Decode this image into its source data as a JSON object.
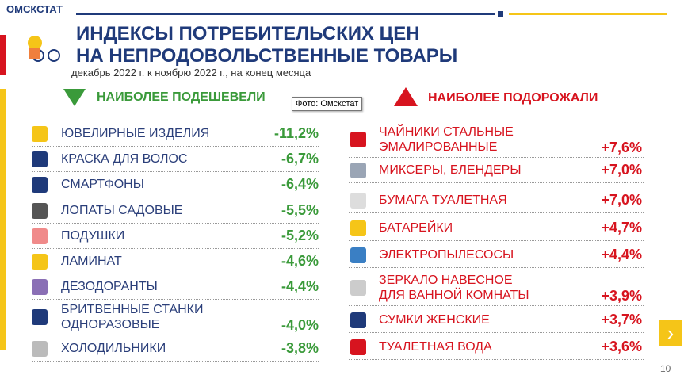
{
  "header": {
    "brand": "ОМСКСТАТ",
    "title_line1": "ИНДЕКСЫ ПОТРЕБИТЕЛЬСКИХ ЦЕН",
    "title_line2": "НА НЕПРОДОВОЛЬСТВЕННЫЕ ТОВАРЫ",
    "subtitle": "декабрь 2022 г. к ноябрю 2022 г., на конец месяца"
  },
  "tooltip": "Фото: Омскстат",
  "cheaper": {
    "heading": "НАИБОЛЕЕ ПОДЕШЕВЕЛИ",
    "items": [
      {
        "label": "ЮВЕЛИРНЫЕ ИЗДЕЛИЯ",
        "value": "-11,2%"
      },
      {
        "label": "КРАСКА ДЛЯ ВОЛОС",
        "value": "-6,7%"
      },
      {
        "label": "СМАРТФОНЫ",
        "value": "-6,4%"
      },
      {
        "label": "ЛОПАТЫ САДОВЫЕ",
        "value": "-5,5%"
      },
      {
        "label": "ПОДУШКИ",
        "value": "-5,2%"
      },
      {
        "label": "ЛАМИНАТ",
        "value": "-4,6%"
      },
      {
        "label": "ДЕЗОДОРАНТЫ",
        "value": "-4,4%"
      },
      {
        "label": "БРИТВЕННЫЕ СТАНКИ\nОДНОРАЗОВЫЕ",
        "value": "-4,0%"
      },
      {
        "label": "ХОЛОДИЛЬНИКИ",
        "value": "-3,8%"
      }
    ]
  },
  "pricier": {
    "heading": "НАИБОЛЕЕ ПОДОРОЖАЛИ",
    "items": [
      {
        "label": "ЧАЙНИКИ СТАЛЬНЫЕ\nЭМАЛИРОВАННЫЕ",
        "value": "+7,6%"
      },
      {
        "label": "МИКСЕРЫ, БЛЕНДЕРЫ",
        "value": "+7,0%"
      },
      {
        "label": "БУМАГА ТУАЛЕТНАЯ",
        "value": "+7,0%"
      },
      {
        "label": "БАТАРЕЙКИ",
        "value": "+4,7%"
      },
      {
        "label": "ЭЛЕКТРОПЫЛЕСОСЫ",
        "value": "+4,4%"
      },
      {
        "label": "ЗЕРКАЛО НАВЕСНОЕ\nДЛЯ ВАННОЙ КОМНАТЫ",
        "value": "+3,9%"
      },
      {
        "label": "СУМКИ ЖЕНСКИЕ",
        "value": "+3,7%"
      },
      {
        "label": "ТУАЛЕТНАЯ ВОДА",
        "value": "+3,6%"
      }
    ]
  },
  "page_number": "10"
}
